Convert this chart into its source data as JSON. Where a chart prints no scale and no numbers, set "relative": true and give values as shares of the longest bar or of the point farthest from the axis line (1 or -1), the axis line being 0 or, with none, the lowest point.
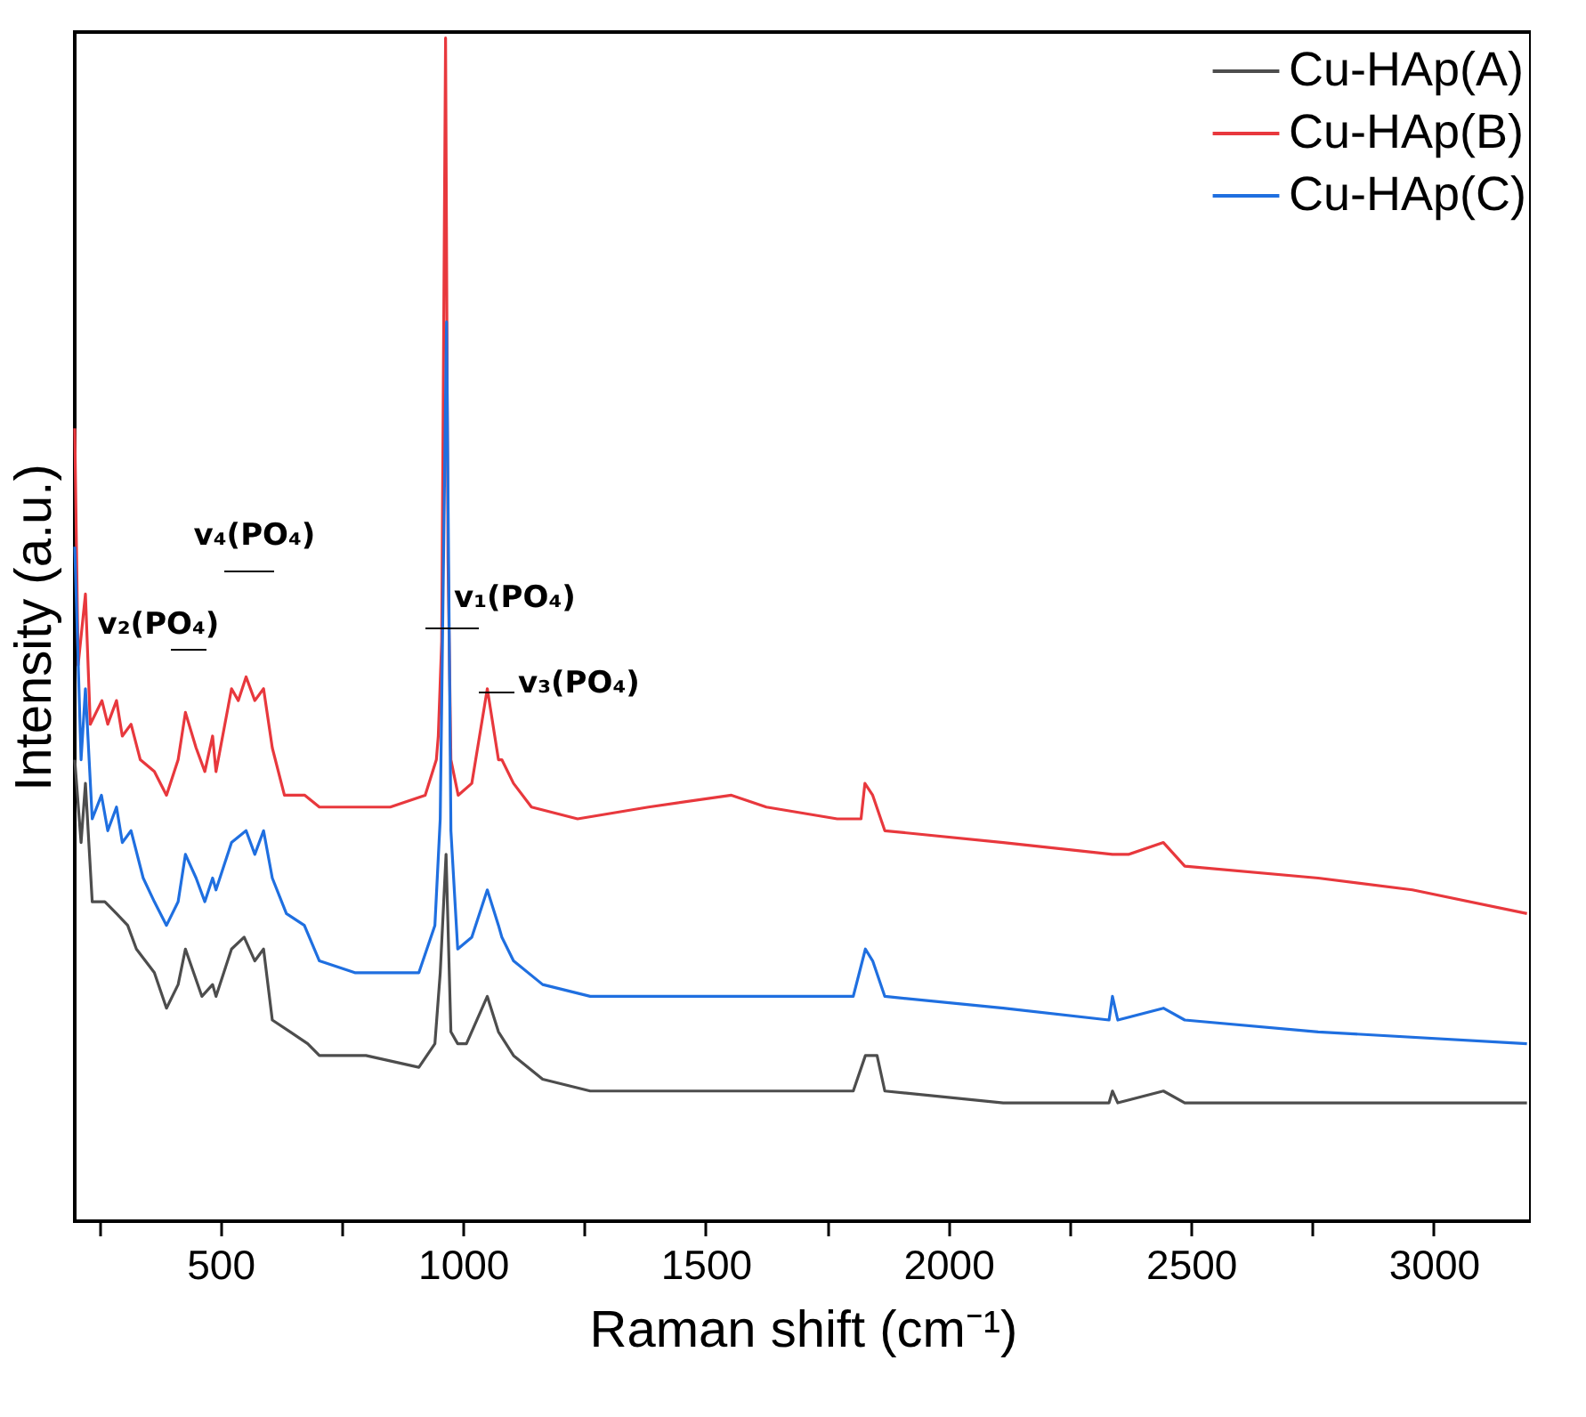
{
  "chart_data": {
    "type": "line",
    "relative": true,
    "xlabel": "Raman shift (cm⁻¹)",
    "ylabel": "Intensity (a.u.)",
    "xlim": [
      200,
      3200
    ],
    "xticks": [
      {
        "value": 250,
        "label": null
      },
      500,
      {
        "value": 750,
        "label": null
      },
      1000,
      {
        "value": 1250,
        "label": null
      },
      1500,
      {
        "value": 1750,
        "label": null
      },
      2000,
      {
        "value": 2250,
        "label": null
      },
      2500,
      {
        "value": 2750,
        "label": null
      },
      3000
    ],
    "legend": "top right",
    "grid": false,
    "tick_labels": "x",
    "line_style": "solid",
    "marker": "none",
    "annotations": [
      "v₂(PO₄)",
      "v₄(PO₄)",
      "v₁(PO₄)",
      "v₃(PO₄)"
    ],
    "series": [
      {
        "name": "Cu-HAp(A)",
        "color": "#4d4d4d",
        "x": [
          200,
          213,
          222,
          236,
          262,
          286,
          309,
          327,
          364,
          389,
          413,
          428,
          462,
          484,
          491,
          523,
          549,
          571,
          589,
          607,
          644,
          680,
          704,
          800,
          909,
          942,
          953,
          965,
          975,
          989,
          1007,
          1050,
          1073,
          1104,
          1164,
          1262,
          1505,
          1625,
          1804,
          1829,
          1853,
          1869,
          2113,
          2331,
          2338,
          2349,
          2443,
          2487,
          3003,
          3192
        ],
        "values": [
          0.39,
          0.32,
          0.37,
          0.27,
          0.27,
          0.26,
          0.25,
          0.23,
          0.21,
          0.18,
          0.2,
          0.23,
          0.19,
          0.2,
          0.19,
          0.23,
          0.24,
          0.22,
          0.23,
          0.17,
          0.16,
          0.15,
          0.14,
          0.14,
          0.13,
          0.15,
          0.21,
          0.31,
          0.16,
          0.15,
          0.15,
          0.19,
          0.16,
          0.14,
          0.12,
          0.11,
          0.11,
          0.11,
          0.11,
          0.14,
          0.14,
          0.11,
          0.1,
          0.1,
          0.11,
          0.1,
          0.11,
          0.1,
          0.1,
          0.1
        ]
      },
      {
        "name": "Cu-HAp(B)",
        "color": "#e8383d",
        "x": [
          200,
          207,
          222,
          232,
          256,
          268,
          286,
          298,
          316,
          335,
          364,
          389,
          413,
          428,
          450,
          468,
          484,
          491,
          523,
          537,
          553,
          571,
          589,
          607,
          632,
          656,
          674,
          704,
          777,
          850,
          922,
          945,
          949,
          956,
          964,
          969,
          975,
          990,
          1018,
          1050,
          1073,
          1080,
          1104,
          1141,
          1236,
          1382,
          1553,
          1625,
          1771,
          1820,
          1828,
          1844,
          1869,
          2113,
          2338,
          2371,
          2443,
          2487,
          2762,
          2956,
          3192
        ],
        "values": [
          0.67,
          0.47,
          0.53,
          0.42,
          0.44,
          0.42,
          0.44,
          0.41,
          0.42,
          0.39,
          0.38,
          0.36,
          0.39,
          0.43,
          0.4,
          0.38,
          0.41,
          0.38,
          0.45,
          0.44,
          0.46,
          0.44,
          0.45,
          0.4,
          0.36,
          0.36,
          0.36,
          0.35,
          0.35,
          0.35,
          0.36,
          0.39,
          0.41,
          0.49,
          1.0,
          0.56,
          0.39,
          0.36,
          0.37,
          0.45,
          0.39,
          0.39,
          0.37,
          0.35,
          0.34,
          0.35,
          0.36,
          0.35,
          0.34,
          0.34,
          0.37,
          0.36,
          0.33,
          0.32,
          0.31,
          0.31,
          0.32,
          0.3,
          0.29,
          0.28,
          0.26
        ]
      },
      {
        "name": "Cu-HAp(C)",
        "color": "#1f6fe0",
        "x": [
          200,
          213,
          222,
          236,
          255,
          268,
          286,
          298,
          316,
          341,
          364,
          389,
          413,
          428,
          450,
          468,
          484,
          491,
          523,
          553,
          571,
          589,
          607,
          636,
          673,
          704,
          777,
          909,
          942,
          953,
          966,
          975,
          989,
          1018,
          1050,
          1073,
          1080,
          1104,
          1164,
          1262,
          1505,
          1625,
          1804,
          1829,
          1844,
          1869,
          2113,
          2331,
          2338,
          2349,
          2443,
          2487,
          2762,
          3192
        ],
        "values": [
          0.57,
          0.39,
          0.45,
          0.34,
          0.36,
          0.33,
          0.35,
          0.32,
          0.33,
          0.29,
          0.27,
          0.25,
          0.27,
          0.31,
          0.29,
          0.27,
          0.29,
          0.28,
          0.32,
          0.33,
          0.31,
          0.33,
          0.29,
          0.26,
          0.25,
          0.22,
          0.21,
          0.21,
          0.25,
          0.34,
          0.76,
          0.33,
          0.23,
          0.24,
          0.28,
          0.25,
          0.24,
          0.22,
          0.2,
          0.19,
          0.19,
          0.19,
          0.19,
          0.23,
          0.22,
          0.19,
          0.18,
          0.17,
          0.19,
          0.17,
          0.18,
          0.17,
          0.16,
          0.15
        ]
      }
    ]
  }
}
